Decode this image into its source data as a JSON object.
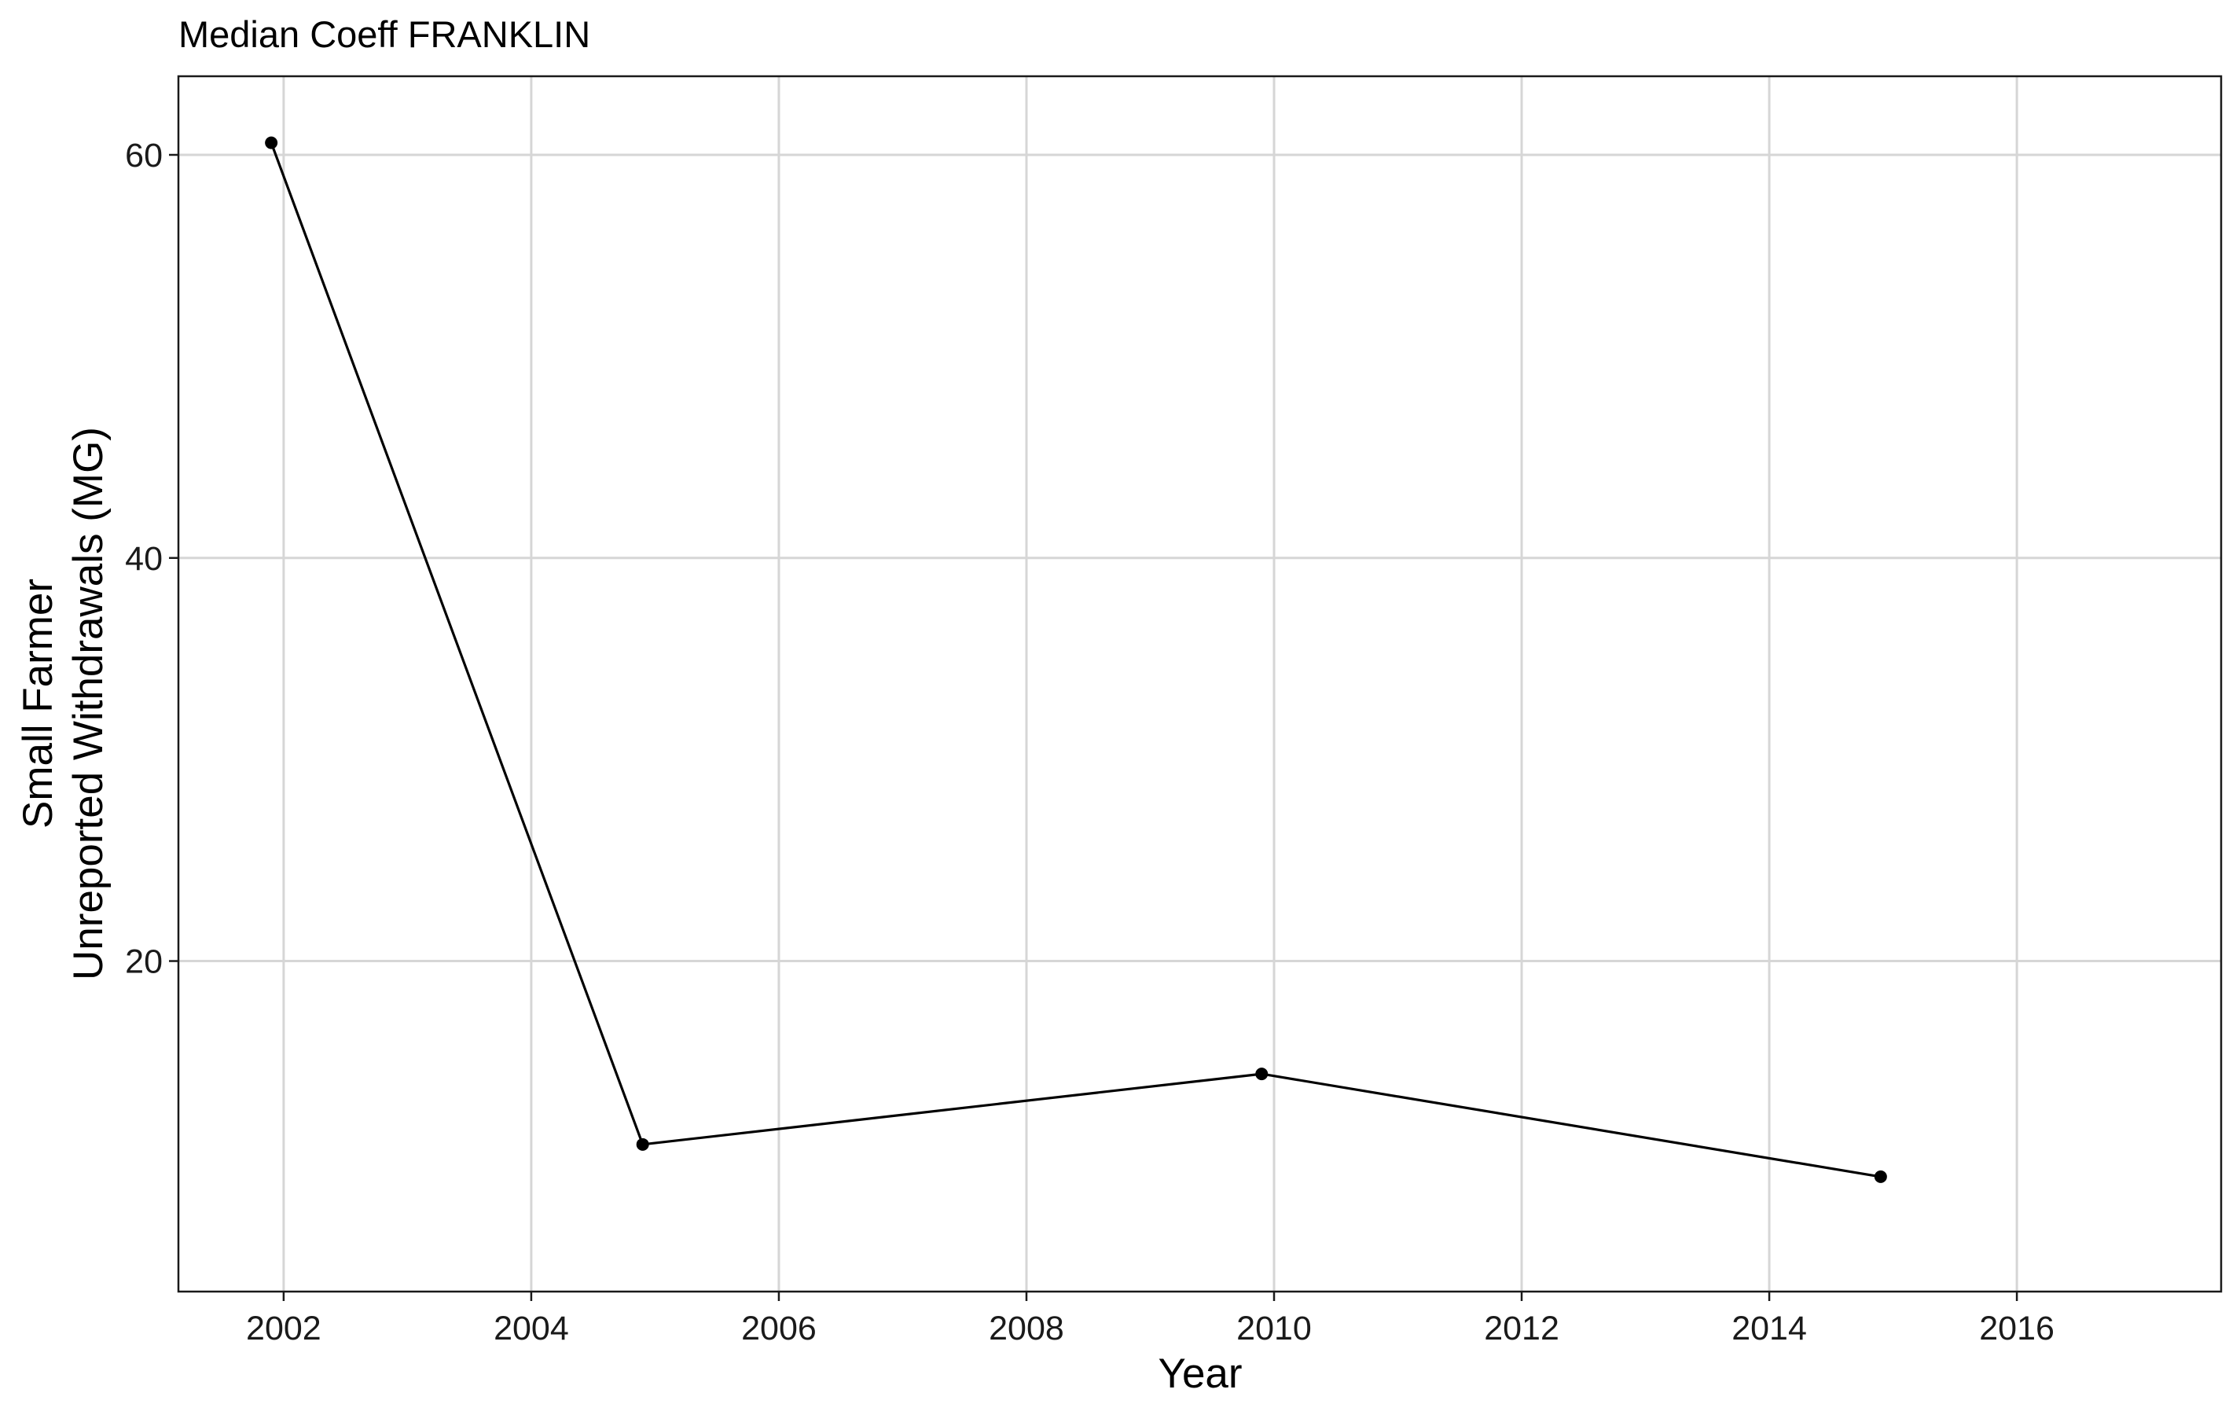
{
  "chart_data": {
    "type": "line",
    "title": "Median Coeff FRANKLIN",
    "xlabel": "Year",
    "ylabel_lines": [
      "Small Farmer",
      "Unreported Withdrawals (MG)"
    ],
    "x": [
      2001.9,
      2004.9,
      2009.9,
      2014.9
    ],
    "y": [
      60.6,
      10.9,
      14.4,
      9.3
    ],
    "x_ticks": [
      2002,
      2004,
      2006,
      2008,
      2010,
      2012,
      2014,
      2016
    ],
    "y_ticks": [
      20,
      40,
      60
    ],
    "xlim": [
      2001.15,
      2017.65
    ],
    "ylim": [
      3.6,
      63.9
    ],
    "grid": true,
    "legend": "none",
    "colors": {
      "line": "#000000",
      "grid": "#d6d6d6",
      "border": "#1a1a1a"
    }
  }
}
